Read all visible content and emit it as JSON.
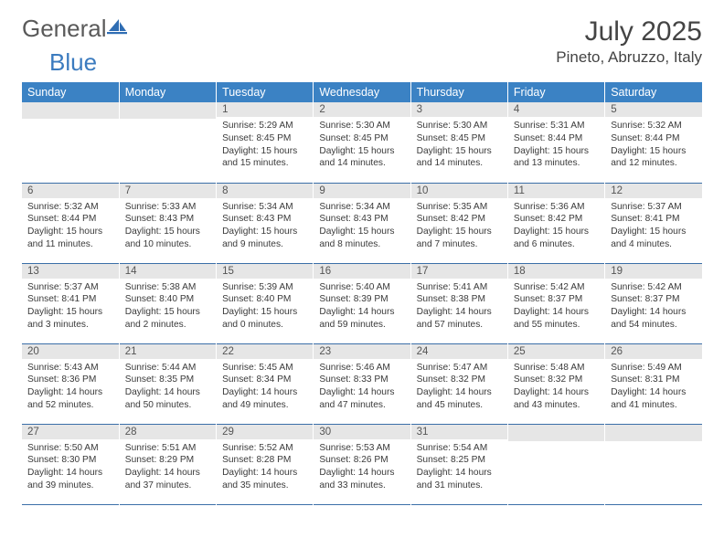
{
  "brand": {
    "part1": "General",
    "part2": "Blue"
  },
  "title": "July 2025",
  "location": "Pineto, Abruzzo, Italy",
  "header_bg": "#3b82c4",
  "header_fg": "#ffffff",
  "daynum_bg": "#e6e6e6",
  "row_border": "#3b6fa8",
  "day_names": [
    "Sunday",
    "Monday",
    "Tuesday",
    "Wednesday",
    "Thursday",
    "Friday",
    "Saturday"
  ],
  "weeks": [
    [
      null,
      null,
      {
        "n": "1",
        "sr": "5:29 AM",
        "ss": "8:45 PM",
        "dl": "15 hours and 15 minutes."
      },
      {
        "n": "2",
        "sr": "5:30 AM",
        "ss": "8:45 PM",
        "dl": "15 hours and 14 minutes."
      },
      {
        "n": "3",
        "sr": "5:30 AM",
        "ss": "8:45 PM",
        "dl": "15 hours and 14 minutes."
      },
      {
        "n": "4",
        "sr": "5:31 AM",
        "ss": "8:44 PM",
        "dl": "15 hours and 13 minutes."
      },
      {
        "n": "5",
        "sr": "5:32 AM",
        "ss": "8:44 PM",
        "dl": "15 hours and 12 minutes."
      }
    ],
    [
      {
        "n": "6",
        "sr": "5:32 AM",
        "ss": "8:44 PM",
        "dl": "15 hours and 11 minutes."
      },
      {
        "n": "7",
        "sr": "5:33 AM",
        "ss": "8:43 PM",
        "dl": "15 hours and 10 minutes."
      },
      {
        "n": "8",
        "sr": "5:34 AM",
        "ss": "8:43 PM",
        "dl": "15 hours and 9 minutes."
      },
      {
        "n": "9",
        "sr": "5:34 AM",
        "ss": "8:43 PM",
        "dl": "15 hours and 8 minutes."
      },
      {
        "n": "10",
        "sr": "5:35 AM",
        "ss": "8:42 PM",
        "dl": "15 hours and 7 minutes."
      },
      {
        "n": "11",
        "sr": "5:36 AM",
        "ss": "8:42 PM",
        "dl": "15 hours and 6 minutes."
      },
      {
        "n": "12",
        "sr": "5:37 AM",
        "ss": "8:41 PM",
        "dl": "15 hours and 4 minutes."
      }
    ],
    [
      {
        "n": "13",
        "sr": "5:37 AM",
        "ss": "8:41 PM",
        "dl": "15 hours and 3 minutes."
      },
      {
        "n": "14",
        "sr": "5:38 AM",
        "ss": "8:40 PM",
        "dl": "15 hours and 2 minutes."
      },
      {
        "n": "15",
        "sr": "5:39 AM",
        "ss": "8:40 PM",
        "dl": "15 hours and 0 minutes."
      },
      {
        "n": "16",
        "sr": "5:40 AM",
        "ss": "8:39 PM",
        "dl": "14 hours and 59 minutes."
      },
      {
        "n": "17",
        "sr": "5:41 AM",
        "ss": "8:38 PM",
        "dl": "14 hours and 57 minutes."
      },
      {
        "n": "18",
        "sr": "5:42 AM",
        "ss": "8:37 PM",
        "dl": "14 hours and 55 minutes."
      },
      {
        "n": "19",
        "sr": "5:42 AM",
        "ss": "8:37 PM",
        "dl": "14 hours and 54 minutes."
      }
    ],
    [
      {
        "n": "20",
        "sr": "5:43 AM",
        "ss": "8:36 PM",
        "dl": "14 hours and 52 minutes."
      },
      {
        "n": "21",
        "sr": "5:44 AM",
        "ss": "8:35 PM",
        "dl": "14 hours and 50 minutes."
      },
      {
        "n": "22",
        "sr": "5:45 AM",
        "ss": "8:34 PM",
        "dl": "14 hours and 49 minutes."
      },
      {
        "n": "23",
        "sr": "5:46 AM",
        "ss": "8:33 PM",
        "dl": "14 hours and 47 minutes."
      },
      {
        "n": "24",
        "sr": "5:47 AM",
        "ss": "8:32 PM",
        "dl": "14 hours and 45 minutes."
      },
      {
        "n": "25",
        "sr": "5:48 AM",
        "ss": "8:32 PM",
        "dl": "14 hours and 43 minutes."
      },
      {
        "n": "26",
        "sr": "5:49 AM",
        "ss": "8:31 PM",
        "dl": "14 hours and 41 minutes."
      }
    ],
    [
      {
        "n": "27",
        "sr": "5:50 AM",
        "ss": "8:30 PM",
        "dl": "14 hours and 39 minutes."
      },
      {
        "n": "28",
        "sr": "5:51 AM",
        "ss": "8:29 PM",
        "dl": "14 hours and 37 minutes."
      },
      {
        "n": "29",
        "sr": "5:52 AM",
        "ss": "8:28 PM",
        "dl": "14 hours and 35 minutes."
      },
      {
        "n": "30",
        "sr": "5:53 AM",
        "ss": "8:26 PM",
        "dl": "14 hours and 33 minutes."
      },
      {
        "n": "31",
        "sr": "5:54 AM",
        "ss": "8:25 PM",
        "dl": "14 hours and 31 minutes."
      },
      null,
      null
    ]
  ],
  "labels": {
    "sunrise": "Sunrise: ",
    "sunset": "Sunset: ",
    "daylight": "Daylight: "
  }
}
